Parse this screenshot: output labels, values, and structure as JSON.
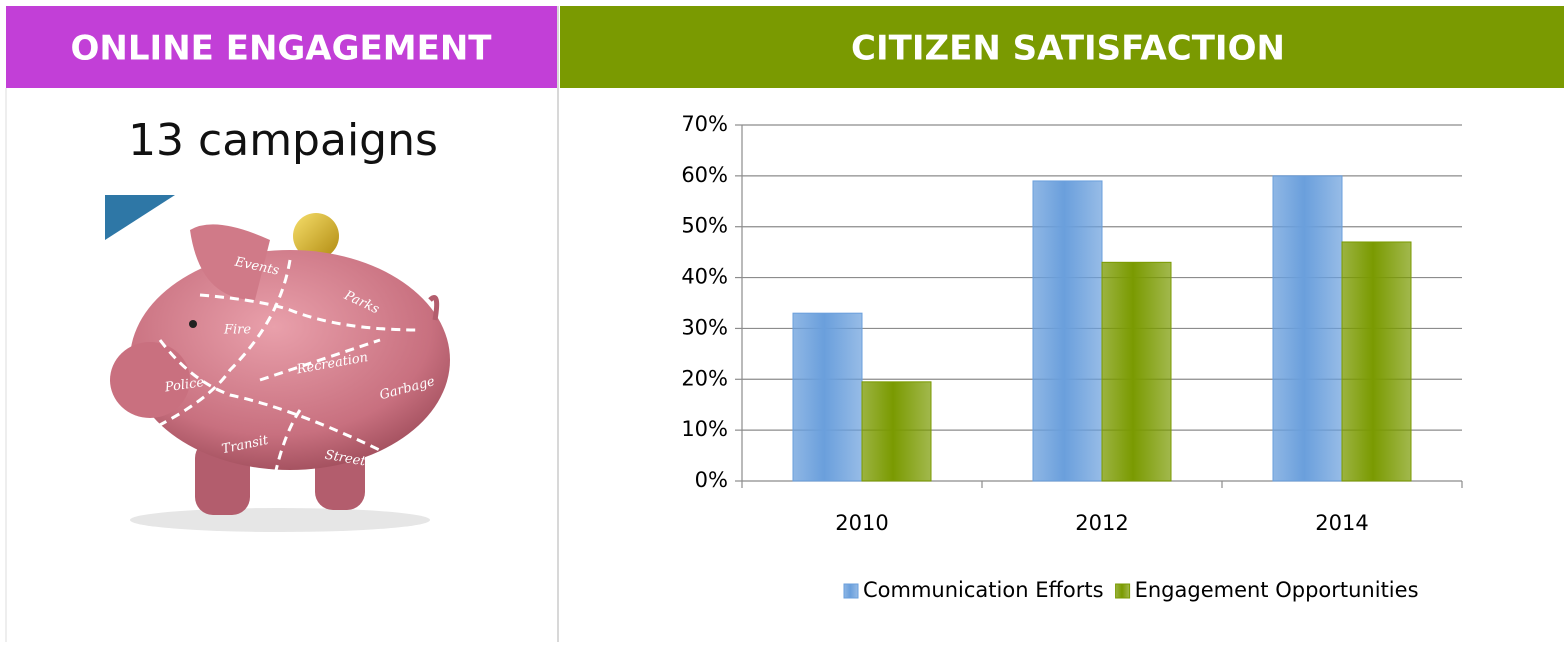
{
  "panels": {
    "left": {
      "title": "ONLINE ENGAGEMENT",
      "headline": "13 campaigns",
      "pig_labels": [
        "Events",
        "Parks",
        "Fire",
        "Recreation",
        "Police",
        "Garbage",
        "Transit",
        "Streets"
      ]
    },
    "right": {
      "title": "CITIZEN SATISFACTION"
    }
  },
  "chart_data": {
    "type": "bar",
    "categories": [
      "2010",
      "2012",
      "2014"
    ],
    "series": [
      {
        "name": "Communication Efforts",
        "color": "#6a9fdc",
        "values": [
          33,
          59,
          60
        ]
      },
      {
        "name": "Engagement Opportunities",
        "color": "#7a9a01",
        "values": [
          19.5,
          43,
          47
        ]
      }
    ],
    "ylim": [
      0,
      70
    ],
    "yticks": [
      {
        "value": 0,
        "label": "0%"
      },
      {
        "value": 10,
        "label": "10%"
      },
      {
        "value": 20,
        "label": "20%"
      },
      {
        "value": 30,
        "label": "30%"
      },
      {
        "value": 40,
        "label": "40%"
      },
      {
        "value": 50,
        "label": "50%"
      },
      {
        "value": 60,
        "label": "60%"
      },
      {
        "value": 70,
        "label": "70%"
      }
    ],
    "grid": true,
    "legend": "bottom"
  }
}
